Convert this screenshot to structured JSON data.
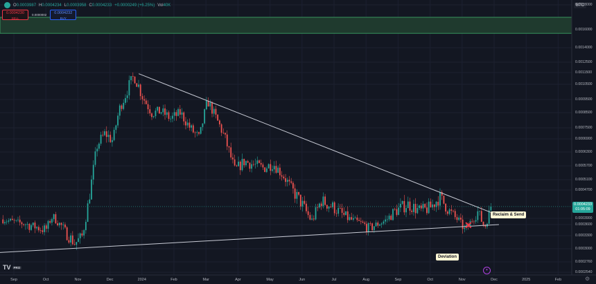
{
  "header": {
    "ohlc": [
      {
        "k": "O",
        "v": "0.0003987"
      },
      {
        "k": "H",
        "v": "0.0004234"
      },
      {
        "k": "L",
        "v": "0.0003958"
      },
      {
        "k": "C",
        "v": "0.0004233"
      },
      {
        "k": "",
        "v": "+0.0000249 (+6.25%)"
      },
      {
        "k": "Vol",
        "v": "40K"
      }
    ],
    "sell_price": "0.0004230",
    "sell_label": "SELL",
    "spread": "0.0000002",
    "buy_price": "0.0004232",
    "buy_label": "BUY",
    "symbol": "BTC"
  },
  "logo": {
    "text": "TV",
    "badge": "PRO"
  },
  "current_price": {
    "value": "0.0004233",
    "countdown": "01:05:09",
    "color": "#26a69a"
  },
  "annotations": {
    "reclaim": "Reclaim & Send",
    "deviation": "Deviation",
    "cross_color": "#f23645"
  },
  "chart_data": {
    "type": "candlestick",
    "price_axis_labels": [
      "0.0018000",
      "0.0016000",
      "0.0014000",
      "0.0012500",
      "0.0011500",
      "0.0010500",
      "0.0009500",
      "0.0008500",
      "0.0007500",
      "0.0006900",
      "0.0006300",
      "0.0005700",
      "0.0005100",
      "0.0004700",
      "0.0003900",
      "0.0003600",
      "0.0003300",
      "0.0003000",
      "0.0002760",
      "0.0002540"
    ],
    "price_levels": [
      0.0018,
      0.0016,
      0.0014,
      0.00125,
      0.00115,
      0.00105,
      0.00095,
      0.00085,
      0.00075,
      0.00069,
      0.00063,
      0.00057,
      0.00051,
      0.00047,
      0.00039,
      0.00036,
      0.00033,
      0.0003,
      0.000276,
      0.000254
    ],
    "time_axis_labels": [
      "Sep",
      "Oct",
      "Nov",
      "Dec",
      "2024",
      "Feb",
      "Mar",
      "Apr",
      "May",
      "Jun",
      "Jul",
      "Aug",
      "Sep",
      "Oct",
      "Nov",
      "Dec",
      "2025",
      "Feb"
    ],
    "time_axis_months": [
      0,
      1,
      2,
      3,
      4,
      5,
      6,
      7,
      8,
      9,
      10,
      11,
      12,
      13,
      14,
      15,
      16,
      17
    ],
    "last_data_month": 14.9,
    "price_path": [
      {
        "t": -0.4,
        "p": 0.000385
      },
      {
        "t": 0.3,
        "p": 0.000365
      },
      {
        "t": 1.0,
        "p": 0.000345
      },
      {
        "t": 1.2,
        "p": 0.000395
      },
      {
        "t": 1.6,
        "p": 0.00034
      },
      {
        "t": 1.9,
        "p": 0.000312
      },
      {
        "t": 2.15,
        "p": 0.00033
      },
      {
        "t": 2.4,
        "p": 0.00048
      },
      {
        "t": 2.6,
        "p": 0.00066
      },
      {
        "t": 2.85,
        "p": 0.00072
      },
      {
        "t": 3.1,
        "p": 0.00068
      },
      {
        "t": 3.3,
        "p": 0.00088
      },
      {
        "t": 3.55,
        "p": 0.00102
      },
      {
        "t": 3.75,
        "p": 0.00112
      },
      {
        "t": 4.0,
        "p": 0.00098
      },
      {
        "t": 4.3,
        "p": 0.00085
      },
      {
        "t": 4.6,
        "p": 0.00086
      },
      {
        "t": 4.9,
        "p": 0.00081
      },
      {
        "t": 5.2,
        "p": 0.00085
      },
      {
        "t": 5.5,
        "p": 0.00075
      },
      {
        "t": 5.8,
        "p": 0.00069
      },
      {
        "t": 6.05,
        "p": 0.00094
      },
      {
        "t": 6.3,
        "p": 0.00082
      },
      {
        "t": 6.6,
        "p": 0.00069
      },
      {
        "t": 6.9,
        "p": 0.00055
      },
      {
        "t": 7.2,
        "p": 0.00059
      },
      {
        "t": 7.5,
        "p": 0.000575
      },
      {
        "t": 7.8,
        "p": 0.00056
      },
      {
        "t": 8.1,
        "p": 0.00058
      },
      {
        "t": 8.4,
        "p": 0.00053
      },
      {
        "t": 8.7,
        "p": 0.00047
      },
      {
        "t": 9.0,
        "p": 0.00043
      },
      {
        "t": 9.3,
        "p": 0.00038
      },
      {
        "t": 9.6,
        "p": 0.00044
      },
      {
        "t": 10.0,
        "p": 0.00042
      },
      {
        "t": 10.4,
        "p": 0.00039
      },
      {
        "t": 10.8,
        "p": 0.00037
      },
      {
        "t": 11.1,
        "p": 0.00035
      },
      {
        "t": 11.5,
        "p": 0.00037
      },
      {
        "t": 11.9,
        "p": 0.00041
      },
      {
        "t": 12.3,
        "p": 0.00043
      },
      {
        "t": 12.7,
        "p": 0.00041
      },
      {
        "t": 13.0,
        "p": 0.00042
      },
      {
        "t": 13.3,
        "p": 0.00045
      },
      {
        "t": 13.6,
        "p": 0.00041
      },
      {
        "t": 13.9,
        "p": 0.00038
      },
      {
        "t": 14.1,
        "p": 0.00034
      },
      {
        "t": 14.3,
        "p": 0.00038
      },
      {
        "t": 14.5,
        "p": 0.00041
      },
      {
        "t": 14.7,
        "p": 0.00035
      },
      {
        "t": 14.9,
        "p": 0.0004233
      }
    ],
    "trendlines": [
      {
        "name": "descending-resistance",
        "start": {
          "t": 3.9,
          "p": 0.00114
        },
        "end": {
          "t": 14.95,
          "p": 0.000405
        }
      },
      {
        "name": "ascending-support",
        "start": {
          "t": -0.5,
          "p": 0.000293
        },
        "end": {
          "t": 15.15,
          "p": 0.00036
        }
      }
    ],
    "zone": {
      "name": "supply-zone",
      "p_top": 0.0018,
      "p_bottom": 0.00156
    },
    "current_price_line": 0.0004233
  }
}
